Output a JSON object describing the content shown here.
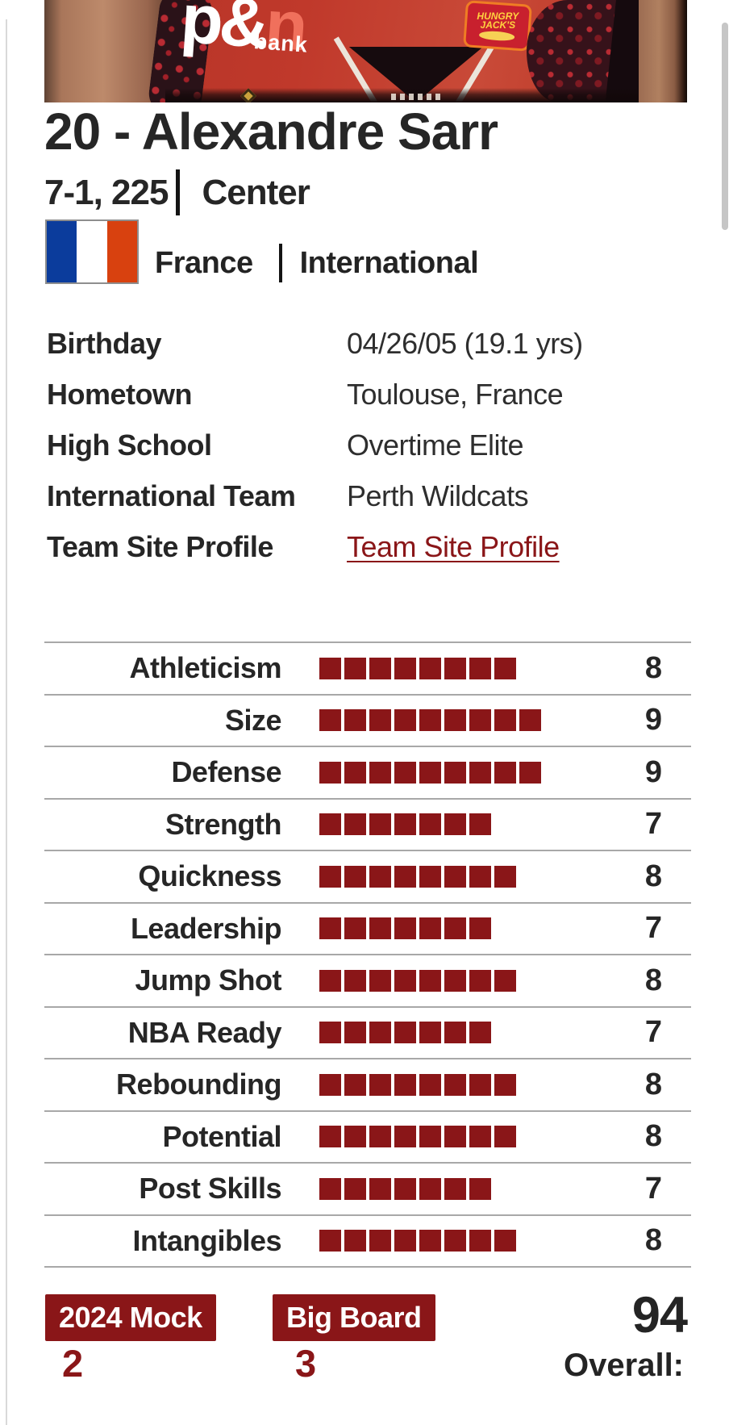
{
  "player": {
    "name_heading": "20 - Alexandre Sarr",
    "measurements": "7-1, 225",
    "position": "Center",
    "country": "France",
    "level": "International"
  },
  "photo": {
    "jersey_sponsor": "p&",
    "jersey_sponsor_tail": "n",
    "jersey_sponsor_sub": "bank",
    "shoulder_sponsor_line1": "HUNGRY",
    "shoulder_sponsor_line2": "JACK'S"
  },
  "info": {
    "rows": [
      {
        "label": "Birthday",
        "value": "04/26/05 (19.1 yrs)",
        "link": false
      },
      {
        "label": "Hometown",
        "value": "Toulouse, France",
        "link": false
      },
      {
        "label": "High School",
        "value": "Overtime Elite",
        "link": false
      },
      {
        "label": "International Team",
        "value": "Perth Wildcats",
        "link": false
      },
      {
        "label": "Team Site Profile",
        "value": "Team Site Profile",
        "link": true
      }
    ]
  },
  "ratings": [
    {
      "label": "Athleticism",
      "value": 8
    },
    {
      "label": "Size",
      "value": 9
    },
    {
      "label": "Defense",
      "value": 9
    },
    {
      "label": "Strength",
      "value": 7
    },
    {
      "label": "Quickness",
      "value": 8
    },
    {
      "label": "Leadership",
      "value": 7
    },
    {
      "label": "Jump Shot",
      "value": 8
    },
    {
      "label": "NBA Ready",
      "value": 7
    },
    {
      "label": "Rebounding",
      "value": 8
    },
    {
      "label": "Potential",
      "value": 8
    },
    {
      "label": "Post Skills",
      "value": 7
    },
    {
      "label": "Intangibles",
      "value": 8
    }
  ],
  "summary": {
    "mock_label": "2024 Mock",
    "mock_rank": "2",
    "board_label": "Big Board",
    "board_rank": "3",
    "overall_value": "94",
    "overall_label": "Overall:"
  },
  "colors": {
    "accent": "#8a1618",
    "rule": "#a8a8a8",
    "flag_blue": "#0b3c9c",
    "flag_red": "#d8410f",
    "jersey_red": "#c0392b"
  }
}
